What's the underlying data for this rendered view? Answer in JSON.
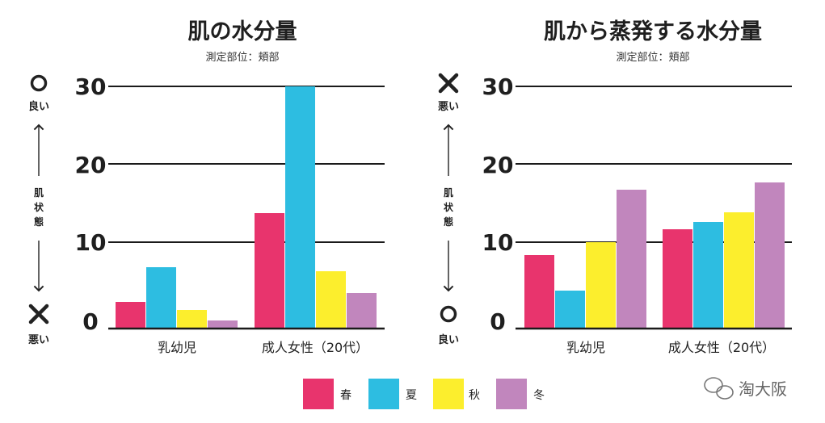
{
  "colors": {
    "spring": "#e8346d",
    "summer": "#2dbde1",
    "autumn": "#fcee2d",
    "winter": "#c186bd",
    "grid": "#1a1a1a"
  },
  "legend": [
    {
      "label": "春",
      "color": "#e8346d"
    },
    {
      "label": "夏",
      "color": "#2dbde1"
    },
    {
      "label": "秋",
      "color": "#fcee2d"
    },
    {
      "label": "冬",
      "color": "#c186bd"
    }
  ],
  "watermark": "淘大阪",
  "chart_data": [
    {
      "type": "bar",
      "title": "肌の水分量",
      "subtitle": "測定部位：頬部",
      "categories": [
        "乳幼児",
        "成人女性（20代）"
      ],
      "series": [
        {
          "name": "春",
          "values": [
            3.3,
            14.3
          ]
        },
        {
          "name": "夏",
          "values": [
            7.6,
            30
          ]
        },
        {
          "name": "秋",
          "values": [
            2.3,
            7.1
          ]
        },
        {
          "name": "冬",
          "values": [
            1.0,
            4.4
          ]
        }
      ],
      "ylim": [
        0,
        30
      ],
      "yticks": [
        "0",
        "10",
        "20",
        "30"
      ],
      "ylabel": "肌状態",
      "top_mark": "○",
      "top_label": "良い",
      "bottom_mark": "✕",
      "bottom_label": "悪い"
    },
    {
      "type": "bar",
      "title": "肌から蒸発する水分量",
      "subtitle": "測定部位：頬部",
      "categories": [
        "乳幼児",
        "成人女性（20代）"
      ],
      "series": [
        {
          "name": "春",
          "values": [
            9.1,
            12.3
          ]
        },
        {
          "name": "夏",
          "values": [
            4.7,
            13.2
          ]
        },
        {
          "name": "秋",
          "values": [
            10.7,
            14.4
          ]
        },
        {
          "name": "冬",
          "values": [
            17.2,
            18.1
          ]
        }
      ],
      "ylim": [
        0,
        30
      ],
      "yticks": [
        "0",
        "10",
        "20",
        "30"
      ],
      "ylabel": "肌状態",
      "top_mark": "✕",
      "top_label": "悪い",
      "bottom_mark": "○",
      "bottom_label": "良い"
    }
  ]
}
